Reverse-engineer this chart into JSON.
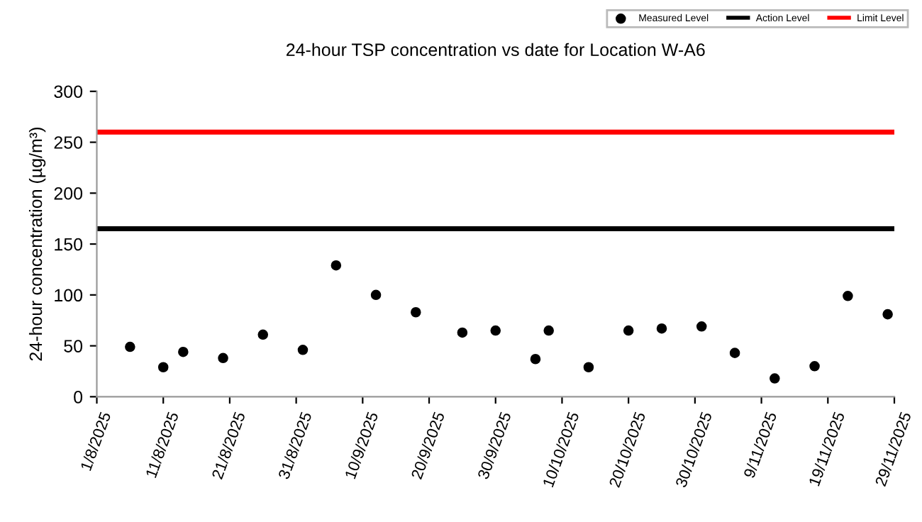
{
  "chart_data": {
    "type": "scatter",
    "title": "24-hour TSP concentration vs date for Location W-A6",
    "ylabel": "24-hour concentration (µg/m³)",
    "series": [
      {
        "name": "Measured Level",
        "color": "#000000",
        "x": [
          "2025-08-06",
          "2025-08-11",
          "2025-08-14",
          "2025-08-20",
          "2025-08-26",
          "2025-09-01",
          "2025-09-06",
          "2025-09-12",
          "2025-09-18",
          "2025-09-25",
          "2025-09-30",
          "2025-10-06",
          "2025-10-08",
          "2025-10-14",
          "2025-10-20",
          "2025-10-25",
          "2025-10-31",
          "2025-11-05",
          "2025-11-11",
          "2025-11-17",
          "2025-11-22",
          "2025-11-28"
        ],
        "values": [
          49,
          29,
          44,
          38,
          61,
          46,
          129,
          100,
          83,
          63,
          65,
          37,
          65,
          29,
          65,
          67,
          69,
          43,
          18,
          30,
          99,
          81
        ]
      }
    ],
    "ref_lines": [
      {
        "axis": "y",
        "value": 165,
        "label": "Action Level",
        "color": "#000000",
        "line_style": "solid"
      },
      {
        "axis": "y",
        "value": 260,
        "label": "Limit Level",
        "color": "#ff0000",
        "line_style": "solid"
      }
    ],
    "xlim": [
      "2025-08-01",
      "2025-11-29"
    ],
    "xticks": [
      {
        "value": "2025-08-01",
        "label": "1/8/2025"
      },
      {
        "value": "2025-08-11",
        "label": "11/8/2025"
      },
      {
        "value": "2025-08-21",
        "label": "21/8/2025"
      },
      {
        "value": "2025-08-31",
        "label": "31/8/2025"
      },
      {
        "value": "2025-09-10",
        "label": "10/9/2025"
      },
      {
        "value": "2025-09-20",
        "label": "20/9/2025"
      },
      {
        "value": "2025-09-30",
        "label": "30/9/2025"
      },
      {
        "value": "2025-10-10",
        "label": "10/10/2025"
      },
      {
        "value": "2025-10-20",
        "label": "20/10/2025"
      },
      {
        "value": "2025-10-30",
        "label": "30/10/2025"
      },
      {
        "value": "2025-11-09",
        "label": "9/11/2025"
      },
      {
        "value": "2025-11-19",
        "label": "19/11/2025"
      },
      {
        "value": "2025-11-29",
        "label": "29/11/2025"
      }
    ],
    "ylim": [
      0,
      300
    ],
    "yticks": [
      0,
      50,
      100,
      150,
      200,
      250,
      300
    ],
    "marker": "circle",
    "grid": false,
    "legend": "top right"
  }
}
